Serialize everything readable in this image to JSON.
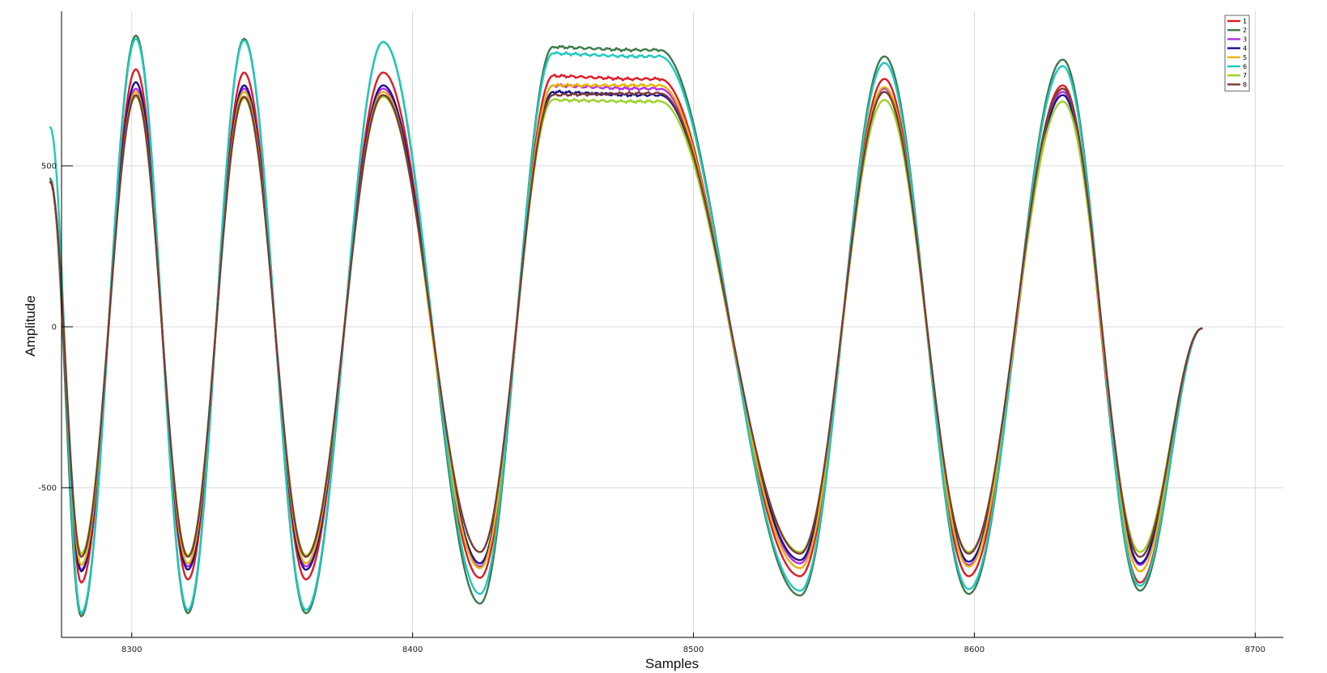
{
  "chart_data": {
    "type": "line",
    "title": "",
    "xlabel": "Samples",
    "ylabel": "Amplitude",
    "xlim": [
      8275,
      8710
    ],
    "ylim": [
      -965,
      980
    ],
    "x_ticks": [
      8300,
      8400,
      8500,
      8600,
      8700
    ],
    "y_ticks": [
      -500,
      0,
      500
    ],
    "grid": true,
    "legend_placement": "top-right",
    "x_segments": [
      8271,
      8282,
      8301.5,
      8320,
      8340,
      8362,
      8389.5,
      8424,
      8450,
      8476,
      8488,
      8538,
      8568,
      8598,
      8631.5,
      8659,
      8681,
      8700,
      8710
    ],
    "series": [
      {
        "name": "1",
        "color": "#e01b24",
        "extremes": [
          450,
          -795,
          800,
          -785,
          790,
          -785,
          790,
          -780,
          780,
          770,
          770,
          -775,
          770,
          -775,
          750,
          -795,
          -5
        ]
      },
      {
        "name": "2",
        "color": "#3d7a4a",
        "extremes": [
          460,
          -900,
          905,
          -890,
          895,
          -890,
          885,
          -860,
          870,
          860,
          860,
          -835,
          840,
          -830,
          830,
          -820,
          -5
        ]
      },
      {
        "name": "3",
        "color": "#b42ee8",
        "extremes": [
          450,
          -755,
          740,
          -745,
          740,
          -745,
          740,
          -745,
          750,
          740,
          740,
          -735,
          740,
          -740,
          730,
          -740,
          -5
        ]
      },
      {
        "name": "4",
        "color": "#1a1290",
        "extremes": [
          450,
          -760,
          760,
          -755,
          750,
          -755,
          750,
          -735,
          730,
          720,
          720,
          -725,
          730,
          -730,
          720,
          -735,
          -5
        ]
      },
      {
        "name": "5",
        "color": "#e8b400",
        "extremes": [
          450,
          -740,
          730,
          -735,
          730,
          -735,
          730,
          -750,
          750,
          750,
          750,
          -750,
          745,
          -745,
          740,
          -760,
          -5
        ]
      },
      {
        "name": "6",
        "color": "#1dc9c0",
        "extremes": [
          620,
          -890,
          895,
          -880,
          890,
          -880,
          885,
          -830,
          850,
          840,
          840,
          -820,
          820,
          -815,
          810,
          -805,
          -5
        ]
      },
      {
        "name": "7",
        "color": "#9bd12a",
        "extremes": [
          450,
          -705,
          715,
          -710,
          710,
          -710,
          715,
          -700,
          705,
          700,
          700,
          -700,
          705,
          -700,
          700,
          -700,
          -5
        ]
      },
      {
        "name": "8",
        "color": "#7a3a3a",
        "extremes": [
          450,
          -715,
          720,
          -715,
          715,
          -715,
          720,
          -700,
          720,
          725,
          725,
          -705,
          730,
          -705,
          740,
          -715,
          -5
        ]
      }
    ]
  }
}
